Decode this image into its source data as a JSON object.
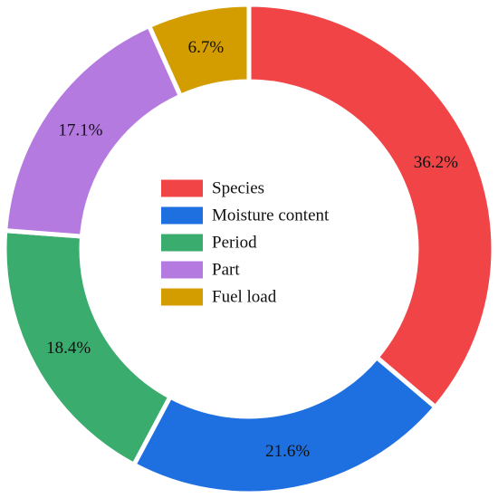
{
  "chart_data": {
    "type": "pie",
    "donut": true,
    "title": "",
    "start_angle_deg": 0,
    "direction": "clockwise",
    "legend_position": "center",
    "series": [
      {
        "name": "Species",
        "value": 36.2,
        "label": "36.2%",
        "color": "#f04447"
      },
      {
        "name": "Moisture content",
        "value": 21.6,
        "label": "21.6%",
        "color": "#1e6fe0"
      },
      {
        "name": "Period",
        "value": 18.4,
        "label": "18.4%",
        "color": "#3aac6e"
      },
      {
        "name": "Part",
        "value": 17.1,
        "label": "17.1%",
        "color": "#b47ae0"
      },
      {
        "name": "Fuel load",
        "value": 6.7,
        "label": "6.7%",
        "color": "#d39d00"
      }
    ]
  }
}
